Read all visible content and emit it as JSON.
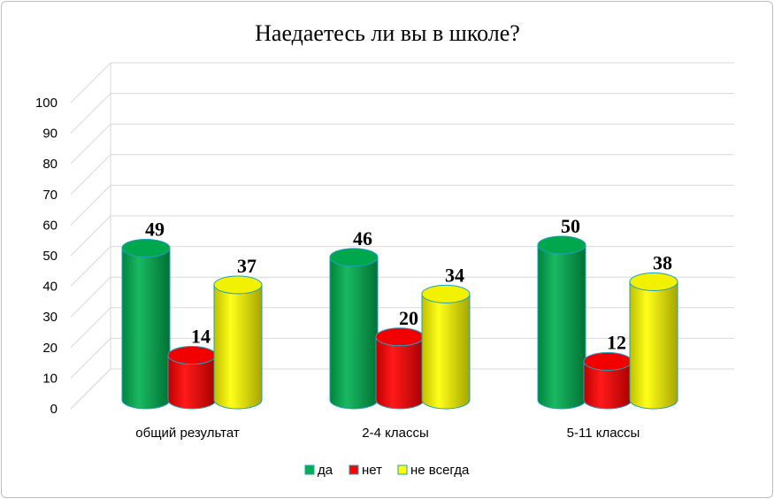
{
  "chart_data": {
    "type": "bar",
    "title": "Наедаетесь ли вы в школе?",
    "categories": [
      "общий результат",
      "2-4 классы",
      "5-11 классы"
    ],
    "series": [
      {
        "name": "да",
        "values": [
          49,
          46,
          50
        ],
        "color": "#00b050"
      },
      {
        "name": "нет",
        "values": [
          14,
          20,
          12
        ],
        "color": "#ff0000"
      },
      {
        "name": "не всегда",
        "values": [
          37,
          34,
          38
        ],
        "color": "#ffff00"
      }
    ],
    "ylim": [
      0,
      100
    ],
    "yticks": [
      "0",
      "10",
      "20",
      "30",
      "40",
      "50",
      "60",
      "70",
      "80",
      "90",
      "100"
    ],
    "grid": true,
    "legend": "bottom",
    "style": "3d-cylinder"
  }
}
